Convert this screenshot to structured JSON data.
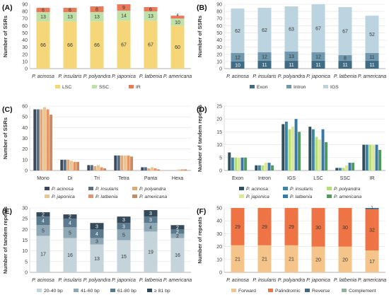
{
  "chart_data": [
    {
      "id": "A",
      "panel_label": "(A)",
      "type": "bar",
      "stacked": true,
      "ylabel": "Number of SSRs",
      "ylim": [
        0,
        90
      ],
      "yticks": [
        0,
        10,
        20,
        30,
        40,
        50,
        60,
        70,
        80,
        90
      ],
      "categories": [
        "P. acinosa",
        "P. insularis",
        "P. polyandra",
        "P. japonica",
        "P. latbenia",
        "P. americana"
      ],
      "series": [
        {
          "name": "LSC",
          "color": "#f5d77a",
          "values": [
            66,
            66,
            66,
            67,
            67,
            60
          ],
          "labels": [
            "66",
            "66",
            "66",
            "67",
            "67",
            "60"
          ],
          "label_color": "#333333"
        },
        {
          "name": "SSC",
          "color": "#bfe0a8",
          "values": [
            13,
            13,
            13,
            14,
            13,
            10
          ],
          "labels": [
            "13",
            "13",
            "13",
            "14",
            "13",
            "10"
          ],
          "label_color": "#333333"
        },
        {
          "name": "IR",
          "color": "#e8795a",
          "values": [
            6,
            6,
            8,
            9,
            6,
            4
          ],
          "labels": [
            "6",
            "6",
            "8",
            "9",
            "6",
            "4"
          ],
          "label_color": "#333333"
        }
      ],
      "legend": "bottom",
      "grid": false
    },
    {
      "id": "B",
      "panel_label": "(B)",
      "type": "bar",
      "stacked": true,
      "ylabel": "Number of SSRs",
      "ylim": [
        0,
        90
      ],
      "yticks": [
        0,
        10,
        20,
        30,
        40,
        50,
        60,
        70,
        80,
        90
      ],
      "categories": [
        "P. acinosa",
        "P. insularis",
        "P. polyandra",
        "P. japonica",
        "P. latbenia",
        "P. americana"
      ],
      "series": [
        {
          "name": "Exon",
          "color": "#3f6b85",
          "values": [
            10,
            11,
            11,
            11,
            11,
            11
          ],
          "labels": [
            "10",
            "11",
            "11",
            "11",
            "11",
            "11"
          ],
          "label_color": "#ffffff"
        },
        {
          "name": "Intron",
          "color": "#6f97ad",
          "values": [
            12,
            12,
            13,
            12,
            8,
            11
          ],
          "labels": [
            "12",
            "12",
            "13",
            "12",
            "8",
            "11"
          ],
          "label_color": "#333333"
        },
        {
          "name": "IGS",
          "color": "#bcd4e0",
          "values": [
            62,
            62,
            63,
            67,
            67,
            52
          ],
          "labels": [
            "62",
            "62",
            "63",
            "67",
            "67",
            "52"
          ],
          "label_color": "#333333"
        }
      ],
      "legend": "bottom",
      "grid": true
    },
    {
      "id": "C",
      "panel_label": "(C)",
      "type": "bar",
      "stacked": false,
      "ylabel": "Number of SSRs",
      "ylim": [
        0,
        60
      ],
      "yticks": [
        0,
        10,
        20,
        30,
        40,
        50,
        60
      ],
      "categories": [
        "Mono",
        "Di",
        "Tri",
        "Tetra",
        "Panta",
        "Hexa"
      ],
      "series": [
        {
          "name": "P. acinosa",
          "color": "#3a4a5a",
          "values": [
            57,
            10,
            5,
            14,
            3,
            0
          ]
        },
        {
          "name": "P. insularis",
          "color": "#5a6f82",
          "values": [
            57,
            10,
            5,
            14,
            3,
            0
          ]
        },
        {
          "name": "P. polyandra",
          "color": "#e6a870",
          "values": [
            57,
            10,
            4,
            14,
            2,
            0
          ]
        },
        {
          "name": "P. japonica",
          "color": "#eec48e",
          "values": [
            59,
            9,
            5,
            14,
            3,
            1
          ]
        },
        {
          "name": "P. latbenia",
          "color": "#e8926a",
          "values": [
            57,
            8,
            3,
            14,
            2,
            1
          ]
        },
        {
          "name": "P. americana",
          "color": "#c98a60",
          "values": [
            52,
            8,
            2,
            13,
            1,
            1
          ]
        }
      ],
      "legend": "bottom",
      "grid": true
    },
    {
      "id": "D",
      "panel_label": "(D)",
      "type": "bar",
      "stacked": false,
      "ylabel": "Number of tandem repeats",
      "ylim": [
        0,
        25
      ],
      "yticks": [
        0,
        5,
        10,
        15,
        20,
        25
      ],
      "categories": [
        "Exon",
        "Intron",
        "IGS",
        "LSC",
        "SSC",
        "IR"
      ],
      "series": [
        {
          "name": "P. acinosa",
          "color": "#2f4f5f",
          "values": [
            7,
            2,
            18,
            17,
            1,
            10
          ]
        },
        {
          "name": "P. insularis",
          "color": "#3d85a5",
          "values": [
            5,
            2,
            19,
            16,
            1,
            10
          ]
        },
        {
          "name": "P. polyandra",
          "color": "#b6dc7a",
          "values": [
            5,
            2,
            16,
            13,
            1,
            10
          ]
        },
        {
          "name": "P. japonica",
          "color": "#dce79c",
          "values": [
            5,
            3,
            17,
            12,
            2,
            10
          ]
        },
        {
          "name": "P. latbenia",
          "color": "#3579a8",
          "values": [
            5,
            3,
            20,
            16,
            3,
            10
          ]
        },
        {
          "name": "P. americana",
          "color": "#4f9a5c",
          "values": [
            5,
            2,
            15,
            11,
            3,
            8
          ]
        }
      ],
      "legend": "bottom",
      "grid": true
    },
    {
      "id": "E",
      "panel_label": "(E)",
      "type": "bar",
      "stacked": true,
      "ylabel": "Number of tandem repeats",
      "ylim": [
        0,
        30
      ],
      "yticks": [
        0,
        5,
        10,
        15,
        20,
        25,
        30
      ],
      "categories": [
        "P. acinosa",
        "P. insularis",
        "P. polyandra",
        "P. japonica",
        "P. latbenia",
        "P. americana"
      ],
      "series": [
        {
          "name": "20-40 bp",
          "color": "#c5d3da",
          "values": [
            17,
            16,
            13,
            15,
            19,
            16
          ],
          "labels": [
            "17",
            "16",
            "13",
            "15",
            "19",
            "16"
          ],
          "label_color": "#333333"
        },
        {
          "name": "41-60 bp",
          "color": "#8fa8b6",
          "values": [
            5,
            5,
            3,
            5,
            4,
            2
          ],
          "labels": [
            "5",
            "5",
            "3",
            "5",
            "4",
            "2"
          ],
          "label_color": "#333333"
        },
        {
          "name": "61-80 bp",
          "color": "#5b7a8e",
          "values": [
            4,
            4,
            4,
            3,
            3,
            2
          ],
          "labels": [
            "4",
            "4",
            "4",
            "3",
            "3",
            "2"
          ],
          "label_color": "#ffffff"
        },
        {
          "name": "≥ 81 bp",
          "color": "#34495a",
          "values": [
            2,
            2,
            3,
            3,
            3,
            2
          ],
          "labels": [
            "2",
            "2",
            "3",
            "3",
            "3",
            "2"
          ],
          "label_color": "#ffffff"
        }
      ],
      "legend": "bottom",
      "grid": true
    },
    {
      "id": "F",
      "panel_label": "(F)",
      "type": "bar",
      "stacked": true,
      "ylabel": "Number of repeats",
      "ylim": [
        0,
        50
      ],
      "yticks": [
        0,
        10,
        20,
        30,
        40,
        50
      ],
      "categories": [
        "P. acinosa",
        "P. insularis",
        "P. polyandra",
        "P. japonica",
        "P. latbenia",
        "P. americana"
      ],
      "series": [
        {
          "name": "Forward",
          "color": "#f5c48a",
          "values": [
            21,
            21,
            21,
            20,
            20,
            17
          ],
          "labels": [
            "21",
            "21",
            "21",
            "20",
            "20",
            "17"
          ],
          "label_color": "#333333"
        },
        {
          "name": "Palindromic",
          "color": "#ee7445",
          "values": [
            29,
            29,
            29,
            30,
            30,
            32
          ],
          "labels": [
            "29",
            "29",
            "29",
            "30",
            "30",
            "32"
          ],
          "label_color": "#333333"
        },
        {
          "name": "Reverse",
          "color": "#3e6a88",
          "values": [
            0,
            0,
            0,
            0,
            0,
            1
          ],
          "labels": [
            "",
            "",
            "",
            "",
            "",
            "1"
          ],
          "label_color": "#ffffff"
        },
        {
          "name": "Complement",
          "color": "#8fb3a0",
          "values": [
            0,
            0,
            0,
            0,
            0,
            0
          ],
          "labels": [
            "",
            "",
            "",
            "",
            "",
            ""
          ],
          "label_color": "#333333"
        }
      ],
      "legend": "bottom",
      "grid": true
    }
  ]
}
